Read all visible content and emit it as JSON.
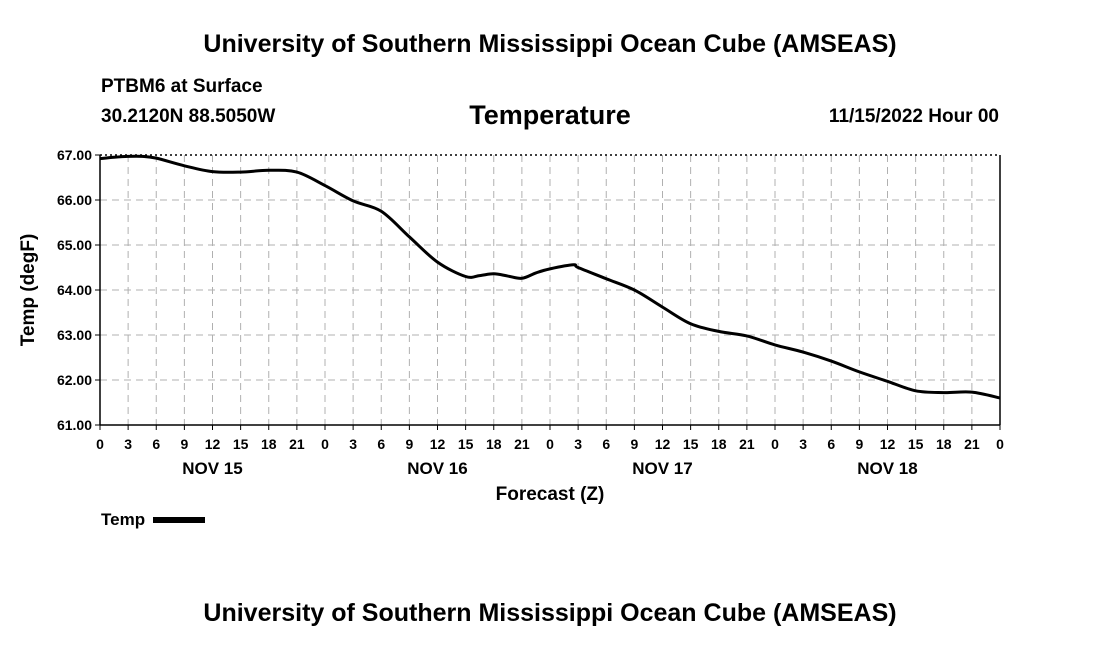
{
  "header": {
    "title_top": "University of Southern Mississippi Ocean Cube (AMSEAS)",
    "title_bottom": "University of Southern Mississippi Ocean Cube (AMSEAS)",
    "station": "PTBM6 at Surface",
    "coords": "30.2120N  88.5050W",
    "variable": "Temperature",
    "datetime": "11/15/2022 Hour 00"
  },
  "chart_data": {
    "type": "line",
    "title": "Temperature",
    "xlabel": "Forecast (Z)",
    "ylabel": "Temp (degF)",
    "ylim": [
      61.0,
      67.0
    ],
    "yticks": [
      "61.00",
      "62.00",
      "63.00",
      "64.00",
      "65.00",
      "66.00",
      "67.00"
    ],
    "xlim_hours": [
      0,
      96
    ],
    "xtick_step_hours": 3,
    "xtick_labels": [
      "0",
      "3",
      "6",
      "9",
      "12",
      "15",
      "18",
      "21",
      "0",
      "3",
      "6",
      "9",
      "12",
      "15",
      "18",
      "21",
      "0",
      "3",
      "6",
      "9",
      "12",
      "15",
      "18",
      "21",
      "0",
      "3",
      "6",
      "9",
      "12",
      "15",
      "18",
      "21",
      "0"
    ],
    "day_labels": [
      {
        "label": "NOV 15",
        "hour": 12
      },
      {
        "label": "NOV 16",
        "hour": 36
      },
      {
        "label": "NOV 17",
        "hour": 60
      },
      {
        "label": "NOV 18",
        "hour": 84
      }
    ],
    "grid": true,
    "legend_position": "bottom-left",
    "series": [
      {
        "name": "Temp",
        "color": "#000000",
        "x": [
          0,
          1.5,
          3,
          4.5,
          6,
          9,
          12,
          15,
          18,
          21,
          24,
          27,
          30,
          33,
          36,
          39,
          40.5,
          42,
          43.5,
          45,
          46.5,
          48,
          50.5,
          51,
          54,
          57,
          60,
          63,
          66,
          69,
          72,
          75,
          78,
          81,
          84,
          87,
          90,
          93,
          96
        ],
        "values": [
          66.92,
          66.95,
          66.97,
          66.97,
          66.93,
          66.76,
          66.63,
          66.62,
          66.66,
          66.62,
          66.32,
          65.98,
          65.75,
          65.18,
          64.62,
          64.3,
          64.32,
          64.36,
          64.31,
          64.26,
          64.38,
          64.47,
          64.56,
          64.5,
          64.25,
          64.0,
          63.62,
          63.25,
          63.08,
          62.98,
          62.78,
          62.62,
          62.42,
          62.18,
          61.97,
          61.76,
          61.72,
          61.73,
          61.6
        ]
      }
    ]
  },
  "legend": {
    "label": "Temp"
  }
}
